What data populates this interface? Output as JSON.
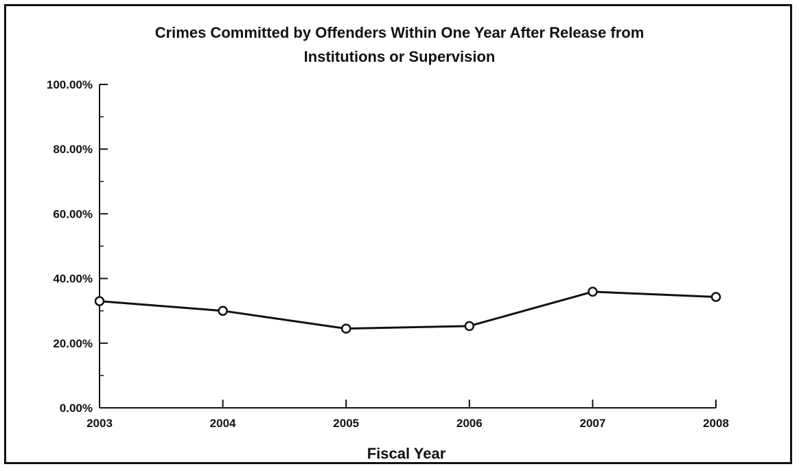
{
  "chart_data": {
    "type": "line",
    "title_lines": [
      "Crimes Committed by Offenders Within One Year After Release from",
      "Institutions or Supervision"
    ],
    "xlabel": "Fiscal Year",
    "ylabel": "",
    "categories": [
      "2003",
      "2004",
      "2005",
      "2006",
      "2007",
      "2008"
    ],
    "series": [
      {
        "values": [
          33.0,
          30.0,
          24.5,
          25.3,
          35.9,
          34.3
        ]
      }
    ],
    "ylim": [
      0,
      100
    ],
    "yticks": [
      "0.00%",
      "20.00%",
      "40.00%",
      "60.00%",
      "80.00%",
      "100.00%"
    ],
    "y_tick_values": [
      0,
      20,
      40,
      60,
      80,
      100
    ],
    "grid": false,
    "legend": "none",
    "colors": {
      "line": "#111111",
      "marker_fill": "#ffffff",
      "frame": "#111111"
    }
  }
}
